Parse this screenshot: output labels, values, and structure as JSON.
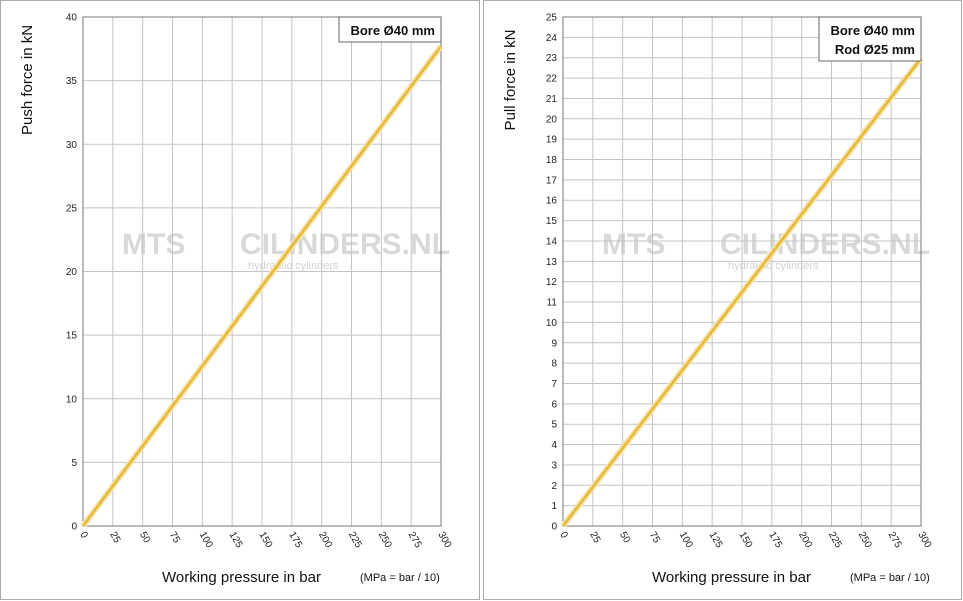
{
  "chart_data": [
    {
      "type": "line",
      "y_label": "Push force in kN",
      "x_label": "Working pressure in bar",
      "x_note": "(MPa = bar / 10)",
      "annotations": [
        "Bore Ø40 mm"
      ],
      "x": [
        0,
        300
      ],
      "series": [
        {
          "color": "#e6b83c",
          "values": [
            0,
            37.7
          ]
        }
      ],
      "xlim": [
        0,
        300
      ],
      "xticks": [
        0,
        25,
        50,
        75,
        100,
        125,
        150,
        175,
        200,
        225,
        250,
        275,
        300
      ],
      "ylim": [
        0,
        40
      ],
      "yticks": [
        0,
        5,
        10,
        15,
        20,
        25,
        30,
        35,
        40
      ],
      "grid": true
    },
    {
      "type": "line",
      "y_label": "Pull force in kN",
      "x_label": "Working pressure in bar",
      "x_note": "(MPa = bar / 10)",
      "annotations": [
        "Bore Ø40 mm",
        "Rod  Ø25 mm"
      ],
      "x": [
        0,
        300
      ],
      "series": [
        {
          "color": "#e6b83c",
          "values": [
            0,
            22.97
          ]
        }
      ],
      "xlim": [
        0,
        300
      ],
      "xticks": [
        0,
        25,
        50,
        75,
        100,
        125,
        150,
        175,
        200,
        225,
        250,
        275,
        300
      ],
      "ylim": [
        0,
        25
      ],
      "yticks": [
        0,
        1,
        2,
        3,
        4,
        5,
        6,
        7,
        8,
        9,
        10,
        11,
        12,
        13,
        14,
        15,
        16,
        17,
        18,
        19,
        20,
        21,
        22,
        23,
        24,
        25
      ],
      "grid": true
    }
  ],
  "watermark": {
    "brand": "MTS",
    "site": "CILINDERS.NL",
    "tagline": "hydraulic cylinders"
  }
}
